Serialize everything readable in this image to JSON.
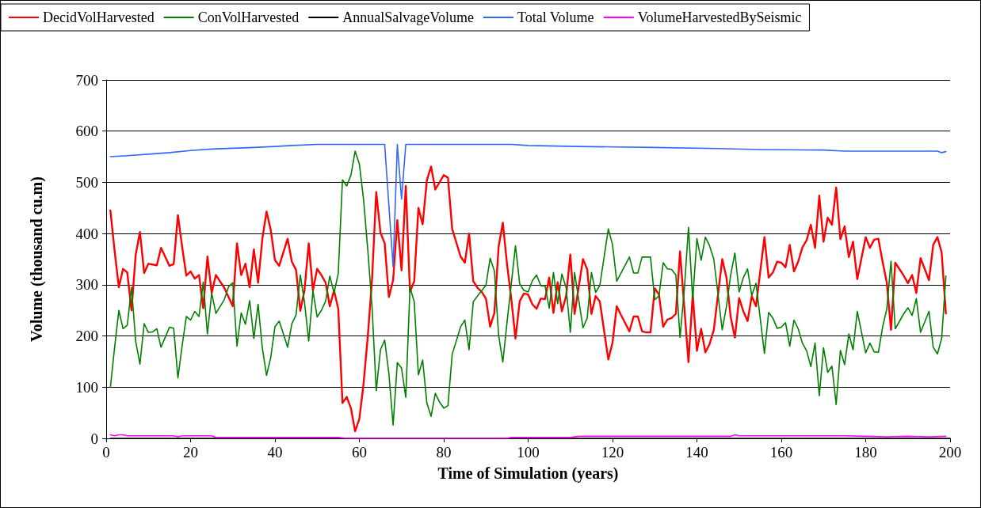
{
  "chart_data": {
    "type": "line",
    "xlabel": "Time of Simulation (years)",
    "ylabel": "Volume (thousand cu.m)",
    "xlim": [
      0,
      200
    ],
    "xticks": [
      0,
      20,
      40,
      60,
      80,
      100,
      120,
      140,
      160,
      180,
      200
    ],
    "ylim": [
      0,
      700
    ],
    "yticks": [
      0,
      100,
      200,
      300,
      400,
      500,
      600,
      700
    ],
    "grid": "y",
    "legend": "top",
    "marker": "none",
    "line_style": "solid",
    "series": [
      {
        "name": "DecidVolHarvested",
        "color": "#ff0000",
        "x": [
          1,
          2,
          3,
          4,
          5,
          6,
          7,
          8,
          9,
          10,
          12,
          13,
          15,
          16,
          17,
          18,
          19,
          20,
          21,
          22,
          23,
          24,
          25,
          26,
          28,
          30,
          31,
          32,
          33,
          34,
          35,
          36,
          37,
          38,
          39,
          40,
          41,
          43,
          44,
          45,
          46,
          47,
          48,
          49,
          50,
          51,
          52,
          53,
          54,
          55,
          56,
          57,
          58,
          59,
          60,
          61,
          62,
          63,
          64,
          65,
          66,
          67,
          68,
          69,
          70,
          71,
          72,
          73,
          74,
          75,
          76,
          77,
          78,
          80,
          81,
          82,
          84,
          85,
          86,
          87,
          88,
          89,
          90,
          91,
          92,
          93,
          94,
          95,
          96,
          97,
          98,
          99,
          100,
          101,
          102,
          103,
          104,
          105,
          106,
          107,
          108,
          109,
          110,
          111,
          113,
          114,
          115,
          116,
          117,
          119,
          120,
          121,
          122,
          124,
          125,
          126,
          127,
          128,
          129,
          130,
          131,
          132,
          133,
          134,
          135,
          136,
          138,
          139,
          140,
          141,
          142,
          143,
          144,
          146,
          147,
          148,
          149,
          150,
          151,
          152,
          153,
          154,
          156,
          157,
          158,
          159,
          160,
          161,
          162,
          163,
          164,
          165,
          166,
          167,
          168,
          169,
          170,
          171,
          172,
          173,
          174,
          175,
          176,
          177,
          178,
          180,
          181,
          182,
          183,
          184,
          185,
          186,
          187,
          189,
          190,
          191,
          192,
          193,
          195,
          196,
          197,
          198,
          199
        ],
        "values": [
          445,
          366,
          295,
          331,
          324,
          250,
          359,
          403,
          323,
          341,
          338,
          372,
          337,
          340,
          436,
          374,
          318,
          326,
          312,
          319,
          254,
          355,
          284,
          319,
          294,
          258,
          381,
          319,
          341,
          295,
          369,
          304,
          389,
          443,
          407,
          348,
          337,
          390,
          345,
          329,
          249,
          289,
          381,
          289,
          331,
          319,
          304,
          258,
          289,
          253,
          69,
          81,
          59,
          14,
          38,
          107,
          199,
          309,
          481,
          402,
          381,
          276,
          309,
          426,
          328,
          493,
          286,
          307,
          450,
          418,
          504,
          531,
          486,
          514,
          509,
          409,
          355,
          343,
          400,
          307,
          294,
          286,
          273,
          218,
          245,
          374,
          421,
          340,
          273,
          195,
          268,
          283,
          281,
          262,
          253,
          273,
          272,
          314,
          245,
          305,
          248,
          278,
          359,
          243,
          350,
          330,
          243,
          278,
          267,
          154,
          187,
          258,
          241,
          209,
          238,
          238,
          209,
          207,
          207,
          293,
          281,
          218,
          232,
          235,
          243,
          365,
          149,
          281,
          171,
          214,
          168,
          184,
          212,
          350,
          314,
          237,
          197,
          274,
          248,
          229,
          278,
          258,
          393,
          314,
          324,
          345,
          343,
          334,
          378,
          326,
          345,
          373,
          387,
          417,
          372,
          474,
          384,
          431,
          417,
          490,
          389,
          414,
          354,
          384,
          311,
          393,
          372,
          388,
          390,
          345,
          304,
          212,
          343,
          318,
          303,
          319,
          284,
          352,
          309,
          378,
          393,
          363,
          244
        ]
      },
      {
        "name": "ConVolHarvested",
        "color": "#008000",
        "x": [
          1,
          2,
          3,
          4,
          5,
          6,
          7,
          8,
          9,
          10,
          11,
          12,
          13,
          15,
          16,
          17,
          18,
          19,
          20,
          21,
          22,
          23,
          24,
          25,
          26,
          28,
          29,
          30,
          31,
          32,
          33,
          34,
          35,
          36,
          37,
          38,
          39,
          40,
          41,
          42,
          43,
          44,
          45,
          46,
          47,
          48,
          49,
          50,
          51,
          52,
          53,
          54,
          55,
          56,
          57,
          58,
          59,
          60,
          61,
          62,
          63,
          64,
          65,
          66,
          67,
          68,
          69,
          70,
          71,
          72,
          73,
          74,
          75,
          76,
          77,
          78,
          79,
          80,
          81,
          82,
          84,
          85,
          86,
          87,
          88,
          90,
          91,
          92,
          93,
          94,
          95,
          97,
          98,
          99,
          100,
          101,
          102,
          103,
          104,
          105,
          106,
          107,
          108,
          109,
          110,
          111,
          113,
          114,
          115,
          116,
          117,
          119,
          120,
          121,
          124,
          125,
          126,
          127,
          129,
          130,
          131,
          132,
          133,
          134,
          135,
          136,
          137,
          138,
          139,
          140,
          141,
          142,
          143,
          144,
          146,
          147,
          148,
          149,
          150,
          151,
          152,
          153,
          154,
          156,
          157,
          158,
          159,
          160,
          161,
          162,
          163,
          164,
          165,
          166,
          167,
          168,
          169,
          170,
          171,
          172,
          173,
          174,
          175,
          176,
          177,
          178,
          180,
          181,
          182,
          183,
          184,
          185,
          186,
          187,
          189,
          190,
          191,
          192,
          193,
          195,
          196,
          197,
          198,
          199
        ],
        "values": [
          100,
          178,
          250,
          214,
          221,
          295,
          189,
          145,
          224,
          207,
          208,
          214,
          178,
          217,
          215,
          118,
          181,
          238,
          231,
          248,
          238,
          305,
          204,
          284,
          244,
          271,
          296,
          304,
          180,
          245,
          223,
          269,
          195,
          262,
          177,
          123,
          158,
          218,
          229,
          204,
          178,
          224,
          241,
          319,
          266,
          190,
          288,
          237,
          250,
          268,
          317,
          284,
          322,
          505,
          493,
          514,
          561,
          536,
          466,
          368,
          258,
          93,
          173,
          192,
          126,
          26,
          148,
          137,
          80,
          295,
          267,
          124,
          153,
          69,
          43,
          88,
          71,
          59,
          64,
          164,
          218,
          231,
          173,
          267,
          278,
          299,
          352,
          327,
          202,
          149,
          227,
          376,
          302,
          289,
          286,
          308,
          319,
          298,
          298,
          254,
          324,
          263,
          321,
          294,
          207,
          324,
          216,
          235,
          324,
          285,
          299,
          409,
          378,
          307,
          354,
          323,
          323,
          354,
          354,
          271,
          278,
          343,
          331,
          330,
          319,
          197,
          289,
          412,
          271,
          390,
          348,
          393,
          376,
          350,
          212,
          258,
          319,
          362,
          286,
          314,
          331,
          279,
          303,
          166,
          246,
          235,
          215,
          217,
          226,
          180,
          231,
          214,
          186,
          171,
          140,
          186,
          83,
          177,
          129,
          141,
          66,
          172,
          144,
          204,
          173,
          248,
          167,
          186,
          169,
          168,
          217,
          253,
          346,
          214,
          243,
          255,
          240,
          273,
          207,
          248,
          178,
          165,
          195,
          317
        ]
      },
      {
        "name": "AnnualSalvageVolume",
        "color": "#000000",
        "x": [
          1,
          200
        ],
        "values": [
          0,
          0
        ]
      },
      {
        "name": "Total Volume",
        "color": "#3366ff",
        "x": [
          1,
          5,
          10,
          15,
          20,
          25,
          35,
          40,
          44,
          50,
          66,
          68,
          69,
          70,
          71,
          96,
          100,
          112,
          130,
          145,
          155,
          170,
          175,
          197,
          198,
          199
        ],
        "values": [
          550,
          552,
          555,
          558,
          562,
          565,
          568,
          570,
          572,
          574,
          574,
          335,
          574,
          467,
          574,
          574,
          572,
          570,
          568,
          566,
          564,
          563,
          561,
          561,
          558,
          560
        ]
      },
      {
        "name": "VolumeHarvestedBySeismic",
        "color": "#ff00ff",
        "x": [
          1,
          2,
          3,
          4,
          5,
          6,
          10,
          16,
          17,
          18,
          25,
          26,
          40,
          55,
          57,
          95,
          96,
          110,
          112,
          120,
          148,
          149,
          150,
          175,
          180,
          185,
          190,
          195,
          199
        ],
        "values": [
          7,
          5,
          7,
          7,
          5,
          5,
          5,
          5,
          3,
          5,
          5,
          2,
          2,
          2,
          0,
          0,
          2,
          2,
          4,
          4,
          4,
          7,
          5,
          5,
          4,
          3,
          4,
          3,
          4
        ]
      }
    ]
  }
}
